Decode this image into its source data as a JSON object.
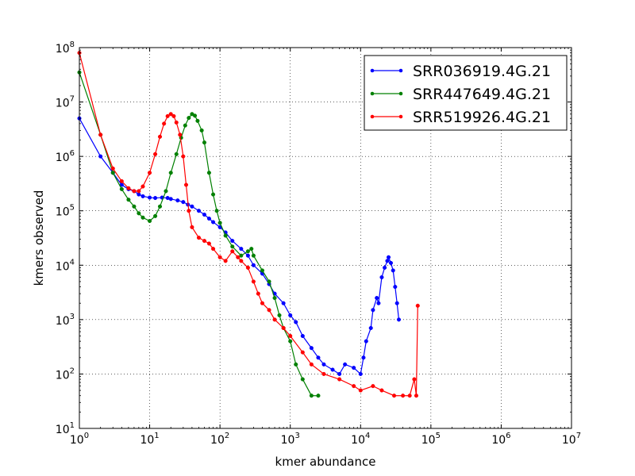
{
  "chart_data": {
    "type": "line",
    "xlabel": "kmer abundance",
    "ylabel": "kmers observed",
    "xscale": "log",
    "yscale": "log",
    "xlim": [
      1,
      10000000
    ],
    "ylim": [
      10,
      100000000
    ],
    "x_ticks": [
      {
        "base": "10",
        "exp": "0",
        "value": 1
      },
      {
        "base": "10",
        "exp": "1",
        "value": 10
      },
      {
        "base": "10",
        "exp": "2",
        "value": 100
      },
      {
        "base": "10",
        "exp": "3",
        "value": 1000
      },
      {
        "base": "10",
        "exp": "4",
        "value": 10000
      },
      {
        "base": "10",
        "exp": "5",
        "value": 100000
      },
      {
        "base": "10",
        "exp": "6",
        "value": 1000000
      },
      {
        "base": "10",
        "exp": "7",
        "value": 10000000
      }
    ],
    "y_ticks": [
      {
        "base": "10",
        "exp": "1",
        "value": 10
      },
      {
        "base": "10",
        "exp": "2",
        "value": 100
      },
      {
        "base": "10",
        "exp": "3",
        "value": 1000
      },
      {
        "base": "10",
        "exp": "4",
        "value": 10000
      },
      {
        "base": "10",
        "exp": "5",
        "value": 100000
      },
      {
        "base": "10",
        "exp": "6",
        "value": 1000000
      },
      {
        "base": "10",
        "exp": "7",
        "value": 10000000
      },
      {
        "base": "10",
        "exp": "8",
        "value": 100000000
      }
    ],
    "grid": true,
    "legend_position": "top-right",
    "series": [
      {
        "name": "SRR036919.4G.21",
        "color": "#0000ff",
        "points": [
          [
            1,
            5000000
          ],
          [
            2,
            1000000
          ],
          [
            3,
            500000
          ],
          [
            4,
            300000
          ],
          [
            5,
            250000
          ],
          [
            6,
            230000
          ],
          [
            7,
            200000
          ],
          [
            8,
            185000
          ],
          [
            10,
            175000
          ],
          [
            12,
            172000
          ],
          [
            15,
            175000
          ],
          [
            18,
            172000
          ],
          [
            20,
            165000
          ],
          [
            25,
            155000
          ],
          [
            30,
            145000
          ],
          [
            35,
            130000
          ],
          [
            40,
            120000
          ],
          [
            50,
            100000
          ],
          [
            60,
            85000
          ],
          [
            70,
            72000
          ],
          [
            80,
            62000
          ],
          [
            100,
            50000
          ],
          [
            120,
            40000
          ],
          [
            150,
            28000
          ],
          [
            200,
            20000
          ],
          [
            250,
            15000
          ],
          [
            300,
            10000
          ],
          [
            400,
            7000
          ],
          [
            500,
            4500
          ],
          [
            600,
            3000
          ],
          [
            800,
            2000
          ],
          [
            1000,
            1200
          ],
          [
            1200,
            900
          ],
          [
            1500,
            500
          ],
          [
            2000,
            300
          ],
          [
            2500,
            200
          ],
          [
            3000,
            150
          ],
          [
            4000,
            120
          ],
          [
            5000,
            100
          ],
          [
            6000,
            150
          ],
          [
            8000,
            130
          ],
          [
            10000,
            100
          ],
          [
            11000,
            200
          ],
          [
            12000,
            400
          ],
          [
            14000,
            700
          ],
          [
            15000,
            1500
          ],
          [
            17000,
            2500
          ],
          [
            18000,
            2000
          ],
          [
            20000,
            6000
          ],
          [
            22000,
            9000
          ],
          [
            24000,
            12000
          ],
          [
            25000,
            14000
          ],
          [
            27000,
            11000
          ],
          [
            29000,
            8000
          ],
          [
            31000,
            4000
          ],
          [
            33000,
            2000
          ],
          [
            35000,
            1000
          ]
        ]
      },
      {
        "name": "SRR447649.4G.21",
        "color": "#008000",
        "points": [
          [
            1,
            35000000
          ],
          [
            2,
            2500000
          ],
          [
            3,
            500000
          ],
          [
            4,
            250000
          ],
          [
            5,
            160000
          ],
          [
            6,
            120000
          ],
          [
            7,
            90000
          ],
          [
            8,
            75000
          ],
          [
            10,
            65000
          ],
          [
            12,
            80000
          ],
          [
            14,
            120000
          ],
          [
            17,
            230000
          ],
          [
            20,
            500000
          ],
          [
            24,
            1100000
          ],
          [
            28,
            2200000
          ],
          [
            32,
            3700000
          ],
          [
            36,
            5100000
          ],
          [
            40,
            6000000
          ],
          [
            44,
            5600000
          ],
          [
            48,
            4500000
          ],
          [
            55,
            3000000
          ],
          [
            60,
            1800000
          ],
          [
            70,
            500000
          ],
          [
            80,
            200000
          ],
          [
            90,
            100000
          ],
          [
            100,
            60000
          ],
          [
            120,
            35000
          ],
          [
            150,
            22000
          ],
          [
            200,
            15000
          ],
          [
            250,
            18000
          ],
          [
            280,
            20000
          ],
          [
            300,
            15000
          ],
          [
            400,
            8000
          ],
          [
            500,
            5000
          ],
          [
            600,
            2500
          ],
          [
            700,
            1200
          ],
          [
            800,
            700
          ],
          [
            1000,
            400
          ],
          [
            1200,
            150
          ],
          [
            1500,
            80
          ],
          [
            2000,
            40
          ],
          [
            2500,
            40
          ]
        ]
      },
      {
        "name": "SRR519926.4G.21",
        "color": "#ff0000",
        "points": [
          [
            1,
            80000000
          ],
          [
            2,
            2500000
          ],
          [
            3,
            600000
          ],
          [
            4,
            350000
          ],
          [
            5,
            260000
          ],
          [
            6,
            230000
          ],
          [
            7,
            230000
          ],
          [
            8,
            280000
          ],
          [
            10,
            500000
          ],
          [
            12,
            1100000
          ],
          [
            14,
            2300000
          ],
          [
            16,
            4000000
          ],
          [
            18,
            5500000
          ],
          [
            20,
            6000000
          ],
          [
            22,
            5500000
          ],
          [
            24,
            4200000
          ],
          [
            27,
            2500000
          ],
          [
            30,
            1000000
          ],
          [
            33,
            300000
          ],
          [
            36,
            100000
          ],
          [
            40,
            50000
          ],
          [
            50,
            32000
          ],
          [
            60,
            28000
          ],
          [
            70,
            25000
          ],
          [
            80,
            20000
          ],
          [
            100,
            14000
          ],
          [
            120,
            12000
          ],
          [
            150,
            18000
          ],
          [
            180,
            14000
          ],
          [
            200,
            12000
          ],
          [
            250,
            9000
          ],
          [
            300,
            5000
          ],
          [
            350,
            3000
          ],
          [
            400,
            2000
          ],
          [
            500,
            1500
          ],
          [
            600,
            1000
          ],
          [
            800,
            700
          ],
          [
            1000,
            500
          ],
          [
            1500,
            250
          ],
          [
            2000,
            150
          ],
          [
            3000,
            100
          ],
          [
            5000,
            80
          ],
          [
            8000,
            60
          ],
          [
            10000,
            50
          ],
          [
            15000,
            60
          ],
          [
            20000,
            50
          ],
          [
            30000,
            40
          ],
          [
            40000,
            40
          ],
          [
            50000,
            40
          ],
          [
            58000,
            80
          ],
          [
            62000,
            40
          ],
          [
            65000,
            1800
          ]
        ]
      }
    ]
  }
}
